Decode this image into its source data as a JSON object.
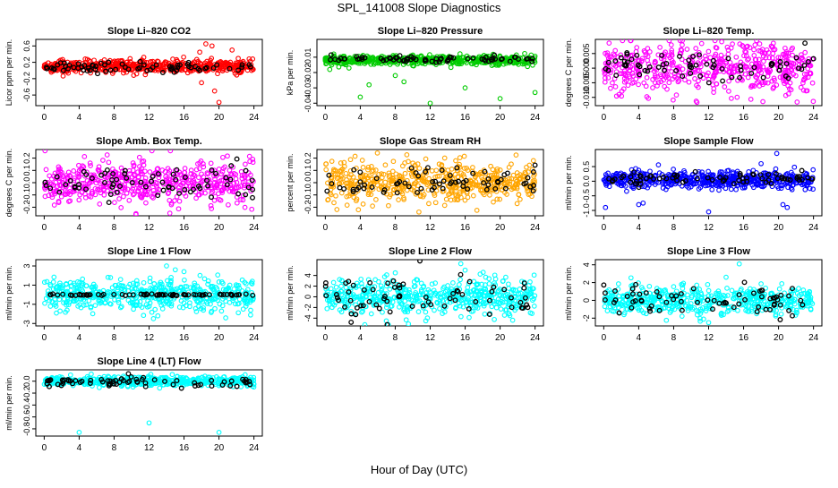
{
  "figure": {
    "title": "SPL_141008  Slope Diagnostics",
    "xlabel": "Hour of Day (UTC)"
  },
  "chart_data": [
    {
      "type": "scatter",
      "title": "Slope Li–820 CO2",
      "ylabel": "Licor ppm per min.",
      "xlim": [
        0,
        24
      ],
      "ylim": [
        -0.8,
        0.7
      ],
      "xticks": [
        0,
        4,
        8,
        12,
        16,
        20,
        24
      ],
      "xtick_labels": [
        "0",
        "4",
        "8",
        "12",
        "16",
        "20",
        "24"
      ],
      "yticks": [
        -0.6,
        -0.2,
        0.2,
        0.6
      ],
      "ytick_labels": [
        "-0.6",
        "-0.2",
        "0.2",
        "0.6"
      ],
      "color": "#ff0000",
      "series": [
        {
          "role": "all",
          "spread": 0.08,
          "center": 0.1,
          "outliers": [
            [
              18.5,
              0.65
            ],
            [
              19.2,
              0.6
            ],
            [
              20,
              -0.78
            ],
            [
              19.5,
              -0.5
            ],
            [
              21.5,
              0.5
            ],
            [
              18,
              -0.3
            ],
            [
              17.8,
              0.45
            ]
          ]
        },
        {
          "role": "subset",
          "spread": 0.06,
          "center": 0.08
        }
      ]
    },
    {
      "type": "scatter",
      "title": "Slope Li–820 Pressure",
      "ylabel": "kPa per min.",
      "xlim": [
        0,
        24
      ],
      "ylim": [
        -0.04,
        0.0
      ],
      "xticks": [
        0,
        4,
        8,
        12,
        16,
        20,
        24
      ],
      "xtick_labels": [
        "0",
        "4",
        "8",
        "12",
        "16",
        "20",
        "24"
      ],
      "yticks": [
        -0.04,
        -0.03,
        -0.02,
        -0.01
      ],
      "ytick_labels": [
        "-0.04",
        "-0.03",
        "-0.02",
        "-0.01"
      ],
      "color": "#00cc00",
      "series": [
        {
          "role": "all",
          "spread": 0.0015,
          "center": -0.012,
          "outliers": [
            [
              4,
              -0.036
            ],
            [
              5,
              -0.028
            ],
            [
              8,
              -0.022
            ],
            [
              9,
              -0.026
            ],
            [
              12,
              -0.04
            ],
            [
              16,
              -0.03
            ],
            [
              20,
              -0.037
            ],
            [
              24,
              -0.033
            ],
            [
              0.5,
              -0.018
            ]
          ]
        },
        {
          "role": "subset",
          "spread": 0.001,
          "center": -0.011
        }
      ]
    },
    {
      "type": "scatter",
      "title": "Slope Li–820 Temp.",
      "ylabel": "degrees C per min.",
      "xlim": [
        0,
        24
      ],
      "ylim": [
        -0.012,
        0.009
      ],
      "xticks": [
        0,
        4,
        8,
        12,
        16,
        20,
        24
      ],
      "xtick_labels": [
        "0",
        "4",
        "8",
        "12",
        "16",
        "20",
        "24"
      ],
      "yticks": [
        -0.01,
        -0.005,
        0.0,
        0.005
      ],
      "ytick_labels": [
        "-0.010",
        "-0.005",
        "0.000",
        "0.005"
      ],
      "color": "#ff00ff",
      "series": [
        {
          "role": "all",
          "spread": 0.0045,
          "center": 0.0
        },
        {
          "role": "subset",
          "spread": 0.003,
          "center": 0.0005
        }
      ]
    },
    {
      "type": "scatter",
      "title": "Slope Amb. Box Temp.",
      "ylabel": "degrees C per min.",
      "xlim": [
        0,
        24
      ],
      "ylim": [
        -0.25,
        0.25
      ],
      "xticks": [
        0,
        4,
        8,
        12,
        16,
        20,
        24
      ],
      "xtick_labels": [
        "0",
        "4",
        "8",
        "12",
        "16",
        "20",
        "24"
      ],
      "yticks": [
        -0.2,
        -0.1,
        0.0,
        0.1,
        0.2
      ],
      "ytick_labels": [
        "-0.2",
        "-0.1",
        "0.0",
        "0.1",
        "0.2"
      ],
      "color": "#ff00ff",
      "series": [
        {
          "role": "all",
          "spread": 0.09,
          "center": 0.0
        },
        {
          "role": "subset",
          "spread": 0.06,
          "center": 0.0
        }
      ]
    },
    {
      "type": "scatter",
      "title": "Slope Gas Stream RH",
      "ylabel": "percent per min.",
      "xlim": [
        0,
        24
      ],
      "ylim": [
        -0.25,
        0.25
      ],
      "xticks": [
        0,
        4,
        8,
        12,
        16,
        20,
        24
      ],
      "xtick_labels": [
        "0",
        "4",
        "8",
        "12",
        "16",
        "20",
        "24"
      ],
      "yticks": [
        -0.2,
        -0.1,
        0.0,
        0.1,
        0.2
      ],
      "ytick_labels": [
        "-0.2",
        "-0.1",
        "0.0",
        "0.1",
        "0.2"
      ],
      "color": "#ffa500",
      "series": [
        {
          "role": "all",
          "spread": 0.085,
          "center": 0.0
        },
        {
          "role": "subset",
          "spread": 0.06,
          "center": 0.0
        }
      ]
    },
    {
      "type": "scatter",
      "title": "Slope Sample Flow",
      "ylabel": "ml/min per min.",
      "xlim": [
        0,
        24
      ],
      "ylim": [
        -1.1,
        1.0
      ],
      "xticks": [
        0,
        4,
        8,
        12,
        16,
        20,
        24
      ],
      "xtick_labels": [
        "0",
        "4",
        "8",
        "12",
        "16",
        "20",
        "24"
      ],
      "yticks": [
        -1.0,
        -0.5,
        0.0,
        0.5
      ],
      "ytick_labels": [
        "-1.0",
        "-0.5",
        "0.0",
        "0.5"
      ],
      "color": "#0000ff",
      "series": [
        {
          "role": "all",
          "spread": 0.15,
          "center": 0.05,
          "outliers": [
            [
              0.2,
              -0.9
            ],
            [
              4,
              -0.8
            ],
            [
              4.5,
              -0.75
            ],
            [
              12,
              -1.05
            ],
            [
              19.8,
              0.95
            ],
            [
              20.5,
              -0.8
            ],
            [
              18,
              0.6
            ],
            [
              21,
              -0.9
            ]
          ]
        },
        {
          "role": "subset",
          "spread": 0.1,
          "center": 0.1
        }
      ]
    },
    {
      "type": "scatter",
      "title": "Slope Line 1 Flow",
      "ylabel": "ml/min per min.",
      "xlim": [
        0,
        24
      ],
      "ylim": [
        -3,
        3.4
      ],
      "xticks": [
        0,
        4,
        8,
        12,
        16,
        20,
        24
      ],
      "xtick_labels": [
        "0",
        "4",
        "8",
        "12",
        "16",
        "20",
        "24"
      ],
      "yticks": [
        -3,
        -1,
        1,
        3
      ],
      "ytick_labels": [
        "-3",
        "-1",
        "1",
        "3"
      ],
      "color": "#00ffff",
      "series": [
        {
          "role": "all",
          "spread": 0.8,
          "center": 0.0,
          "outliers": [
            [
              14,
              3.0
            ],
            [
              15,
              2.6
            ],
            [
              12.5,
              -2.5
            ],
            [
              16,
              2.4
            ],
            [
              13,
              -2.2
            ]
          ]
        },
        {
          "role": "subset",
          "spread": 0.05,
          "center": 0.0
        }
      ]
    },
    {
      "type": "scatter",
      "title": "Slope Line 2 Flow",
      "ylabel": "ml/min per min.",
      "xlim": [
        0,
        24
      ],
      "ylim": [
        -5,
        6.5
      ],
      "xticks": [
        0,
        4,
        8,
        12,
        16,
        20,
        24
      ],
      "xtick_labels": [
        "0",
        "4",
        "8",
        "12",
        "16",
        "20",
        "24"
      ],
      "yticks": [
        -4,
        -2,
        0,
        2,
        4
      ],
      "ytick_labels": [
        "-4",
        "-2",
        "0",
        "2",
        "4"
      ],
      "color": "#00ffff",
      "series": [
        {
          "role": "all",
          "spread": 1.6,
          "center": 0.0,
          "outliers": [
            [
              15.5,
              6.2
            ],
            [
              16,
              5
            ],
            [
              11.5,
              -4.5
            ],
            [
              8,
              4.5
            ]
          ]
        },
        {
          "role": "subset",
          "spread": 1.8,
          "center": 0.0
        }
      ]
    },
    {
      "type": "scatter",
      "title": "Slope Line 3 Flow",
      "ylabel": "ml/min per min.",
      "xlim": [
        0,
        24
      ],
      "ylim": [
        -2.6,
        4.3
      ],
      "xticks": [
        0,
        4,
        8,
        12,
        16,
        20,
        24
      ],
      "xtick_labels": [
        "0",
        "4",
        "8",
        "12",
        "16",
        "20",
        "24"
      ],
      "yticks": [
        -2,
        0,
        2,
        4
      ],
      "ytick_labels": [
        "-2",
        "0",
        "2",
        "4"
      ],
      "color": "#00ffff",
      "series": [
        {
          "role": "all",
          "spread": 0.8,
          "center": 0.0,
          "outliers": [
            [
              15.5,
              4.1
            ],
            [
              12,
              -2.5
            ],
            [
              14,
              2.6
            ]
          ]
        },
        {
          "role": "subset",
          "spread": 0.9,
          "center": 0.0
        }
      ]
    },
    {
      "type": "scatter",
      "title": "Slope Line 4 (LT) Flow",
      "ylabel": "ml/min per min.",
      "xlim": [
        0,
        24
      ],
      "ylim": [
        -0.88,
        0.15
      ],
      "xticks": [
        0,
        4,
        8,
        12,
        16,
        20,
        24
      ],
      "xtick_labels": [
        "0",
        "4",
        "8",
        "12",
        "16",
        "20",
        "24"
      ],
      "yticks": [
        -0.8,
        -0.6,
        -0.4,
        -0.2,
        0.0
      ],
      "ytick_labels": [
        "-0.8",
        "-0.6",
        "-0.4",
        "-0.2",
        "0.0"
      ],
      "color": "#00ffff",
      "series": [
        {
          "role": "all",
          "spread": 0.04,
          "center": 0.0,
          "outliers": [
            [
              4,
              -0.86
            ],
            [
              12,
              -0.7
            ],
            [
              20,
              -0.86
            ]
          ]
        },
        {
          "role": "subset",
          "spread": 0.04,
          "center": -0.02
        }
      ]
    }
  ]
}
